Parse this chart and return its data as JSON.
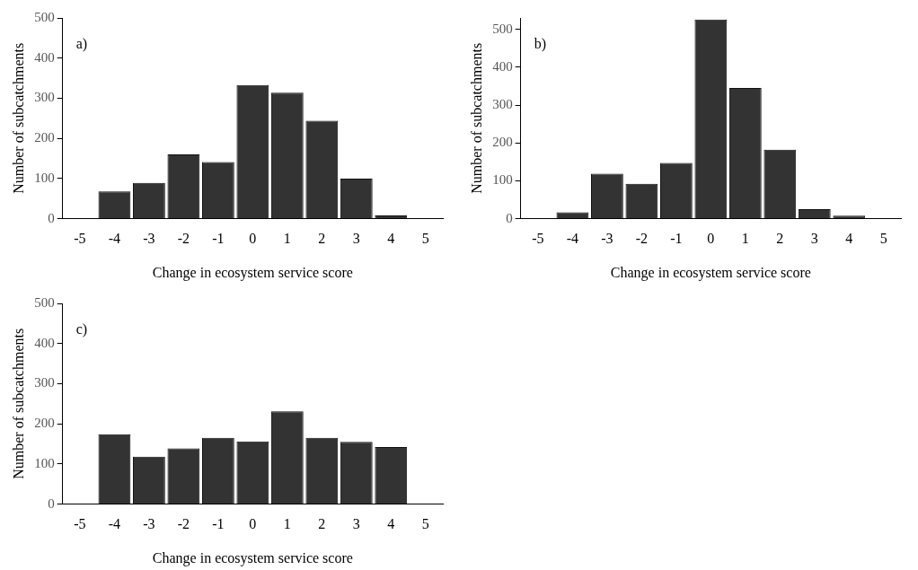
{
  "chart_data": [
    {
      "type": "bar",
      "categories": [
        "-5",
        "-4",
        "-3",
        "-2",
        "-1",
        "0",
        "1",
        "2",
        "3",
        "4",
        "5"
      ],
      "values": [
        0,
        68,
        89,
        160,
        141,
        333,
        314,
        244,
        100,
        8,
        0
      ],
      "color": "#333333",
      "xlabel": "Change in ecosystem service score",
      "ylabel": "Number of subcatchments",
      "ylim": [
        0,
        500
      ],
      "yticks": [
        0,
        100,
        200,
        300,
        400,
        500
      ],
      "grid": false,
      "annotations": [
        "a)"
      ]
    },
    {
      "type": "bar",
      "categories": [
        "-5",
        "-4",
        "-3",
        "-2",
        "-1",
        "0",
        "1",
        "2",
        "3",
        "4",
        "5"
      ],
      "values": [
        0,
        17,
        119,
        92,
        147,
        526,
        345,
        182,
        25,
        8,
        0
      ],
      "color": "#333333",
      "xlabel": "Change in ecosystem service score",
      "ylabel": "Number of subcatchments",
      "ylim": [
        0,
        530
      ],
      "yticks": [
        0,
        100,
        200,
        300,
        400,
        500
      ],
      "grid": false,
      "annotations": [
        "b)"
      ]
    },
    {
      "type": "bar",
      "categories": [
        "-5",
        "-4",
        "-3",
        "-2",
        "-1",
        "0",
        "1",
        "2",
        "3",
        "4",
        "5"
      ],
      "values": [
        0,
        174,
        118,
        139,
        165,
        156,
        231,
        165,
        155,
        142,
        0
      ],
      "color": "#333333",
      "xlabel": "Change in ecosystem service score",
      "ylabel": "Number of subcatchments",
      "ylim": [
        0,
        500
      ],
      "yticks": [
        0,
        100,
        200,
        300,
        400,
        500
      ],
      "grid": false,
      "annotations": [
        "c)"
      ]
    }
  ]
}
